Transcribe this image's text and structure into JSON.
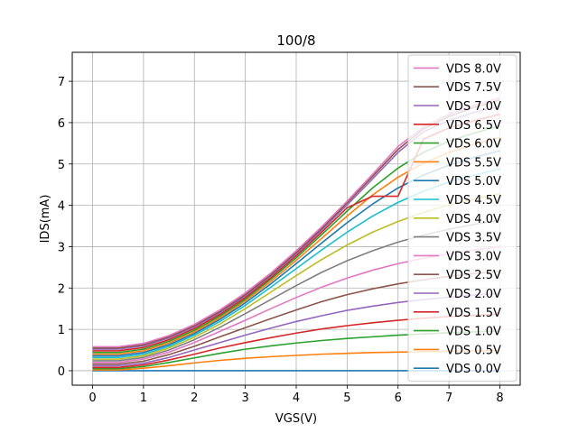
{
  "chart_data": {
    "type": "line",
    "title": "100/8",
    "xlabel": "VGS(V)",
    "ylabel": "IDS(mA)",
    "xlim": [
      -0.4,
      8.4
    ],
    "ylim": [
      -0.35,
      7.7
    ],
    "xticks": [
      0,
      1,
      2,
      3,
      4,
      5,
      6,
      7,
      8
    ],
    "yticks": [
      0,
      1,
      2,
      3,
      4,
      5,
      6,
      7
    ],
    "grid": true,
    "legend_position": "upper-right",
    "x": [
      0,
      0.5,
      1,
      1.5,
      2,
      2.5,
      3,
      3.5,
      4,
      4.5,
      5,
      5.5,
      6,
      6.5,
      7,
      7.5,
      8
    ],
    "series": [
      {
        "name": "VDS 8.0V",
        "color": "#e377c2",
        "values": [
          0.58,
          0.58,
          0.66,
          0.85,
          1.12,
          1.47,
          1.88,
          2.36,
          2.9,
          3.48,
          4.1,
          4.75,
          5.42,
          5.9,
          6.2,
          6.42,
          6.6
        ]
      },
      {
        "name": "VDS 7.5V",
        "color": "#8c564b",
        "values": [
          0.55,
          0.55,
          0.63,
          0.82,
          1.09,
          1.43,
          1.84,
          2.32,
          2.86,
          3.44,
          4.06,
          4.7,
          5.35,
          5.85,
          6.15,
          6.37,
          6.55
        ]
      },
      {
        "name": "VDS 7.0V",
        "color": "#9467bd",
        "values": [
          0.52,
          0.52,
          0.6,
          0.79,
          1.06,
          1.4,
          1.81,
          2.29,
          2.82,
          3.4,
          4.01,
          4.64,
          5.28,
          5.78,
          6.05,
          6.25,
          6.4
        ]
      },
      {
        "name": "VDS 6.5V",
        "color": "#d62728",
        "values": [
          0.48,
          0.48,
          0.56,
          0.75,
          1.02,
          1.36,
          1.77,
          2.25,
          2.78,
          3.35,
          3.94,
          4.22,
          4.22,
          5.6,
          5.87,
          6.05,
          6.2
        ]
      },
      {
        "name": "VDS 6.0V",
        "color": "#2ca02c",
        "values": [
          0.44,
          0.44,
          0.52,
          0.71,
          0.98,
          1.32,
          1.73,
          2.21,
          2.73,
          3.29,
          3.86,
          4.42,
          4.9,
          5.28,
          5.55,
          5.75,
          5.92
        ]
      },
      {
        "name": "VDS 5.5V",
        "color": "#ff7f0e",
        "values": [
          0.4,
          0.4,
          0.48,
          0.67,
          0.94,
          1.28,
          1.69,
          2.16,
          2.67,
          3.2,
          3.74,
          4.25,
          4.68,
          5.02,
          5.28,
          5.48,
          5.64
        ]
      },
      {
        "name": "VDS 5.0V",
        "color": "#1f77b4",
        "values": [
          0.36,
          0.36,
          0.44,
          0.63,
          0.9,
          1.24,
          1.64,
          2.1,
          2.59,
          3.09,
          3.58,
          4.03,
          4.42,
          4.73,
          4.97,
          5.16,
          5.32
        ]
      },
      {
        "name": "VDS 4.5V",
        "color": "#17becf",
        "values": [
          0.32,
          0.32,
          0.4,
          0.59,
          0.86,
          1.19,
          1.58,
          2.02,
          2.47,
          2.92,
          3.35,
          3.74,
          4.07,
          4.34,
          4.56,
          4.73,
          4.88
        ]
      },
      {
        "name": "VDS 4.0V",
        "color": "#bcbd22",
        "values": [
          0.28,
          0.28,
          0.36,
          0.55,
          0.81,
          1.13,
          1.5,
          1.9,
          2.3,
          2.69,
          3.04,
          3.35,
          3.61,
          3.83,
          4.01,
          4.15,
          4.28
        ]
      },
      {
        "name": "VDS 3.5V",
        "color": "#7f7f7f",
        "values": [
          0.24,
          0.24,
          0.32,
          0.5,
          0.75,
          1.05,
          1.38,
          1.72,
          2.06,
          2.38,
          2.66,
          2.9,
          3.11,
          3.28,
          3.42,
          3.54,
          3.64
        ]
      },
      {
        "name": "VDS 3.0V",
        "color": "#e377c2",
        "values": [
          0.2,
          0.2,
          0.28,
          0.45,
          0.68,
          0.95,
          1.22,
          1.5,
          1.77,
          2.02,
          2.24,
          2.43,
          2.59,
          2.72,
          2.83,
          2.92,
          3.0
        ]
      },
      {
        "name": "VDS 2.5V",
        "color": "#8c564b",
        "values": [
          0.16,
          0.16,
          0.23,
          0.39,
          0.59,
          0.82,
          1.04,
          1.26,
          1.47,
          1.67,
          1.84,
          1.98,
          2.1,
          2.2,
          2.28,
          2.35,
          2.41
        ]
      },
      {
        "name": "VDS 2.0V",
        "color": "#9467bd",
        "values": [
          0.12,
          0.12,
          0.18,
          0.32,
          0.5,
          0.68,
          0.86,
          1.03,
          1.19,
          1.33,
          1.46,
          1.56,
          1.65,
          1.72,
          1.78,
          1.83,
          1.87
        ]
      },
      {
        "name": "VDS 1.5V",
        "color": "#d62728",
        "values": [
          0.08,
          0.08,
          0.14,
          0.26,
          0.4,
          0.55,
          0.68,
          0.8,
          0.91,
          1.01,
          1.09,
          1.16,
          1.22,
          1.27,
          1.31,
          1.34,
          1.37
        ]
      },
      {
        "name": "VDS 1.0V",
        "color": "#2ca02c",
        "values": [
          0.05,
          0.05,
          0.1,
          0.2,
          0.31,
          0.42,
          0.52,
          0.6,
          0.67,
          0.73,
          0.78,
          0.82,
          0.86,
          0.89,
          0.92,
          0.94,
          0.96
        ]
      },
      {
        "name": "VDS 0.5V",
        "color": "#ff7f0e",
        "values": [
          0.02,
          0.02,
          0.06,
          0.12,
          0.19,
          0.25,
          0.3,
          0.34,
          0.37,
          0.4,
          0.42,
          0.44,
          0.45,
          0.46,
          0.47,
          0.48,
          0.49
        ]
      },
      {
        "name": "VDS 0.0V",
        "color": "#1f77b4",
        "values": [
          0,
          0,
          0,
          0,
          0,
          0,
          0,
          0,
          0,
          0,
          0,
          0,
          0,
          0,
          0,
          0,
          0
        ]
      }
    ]
  }
}
